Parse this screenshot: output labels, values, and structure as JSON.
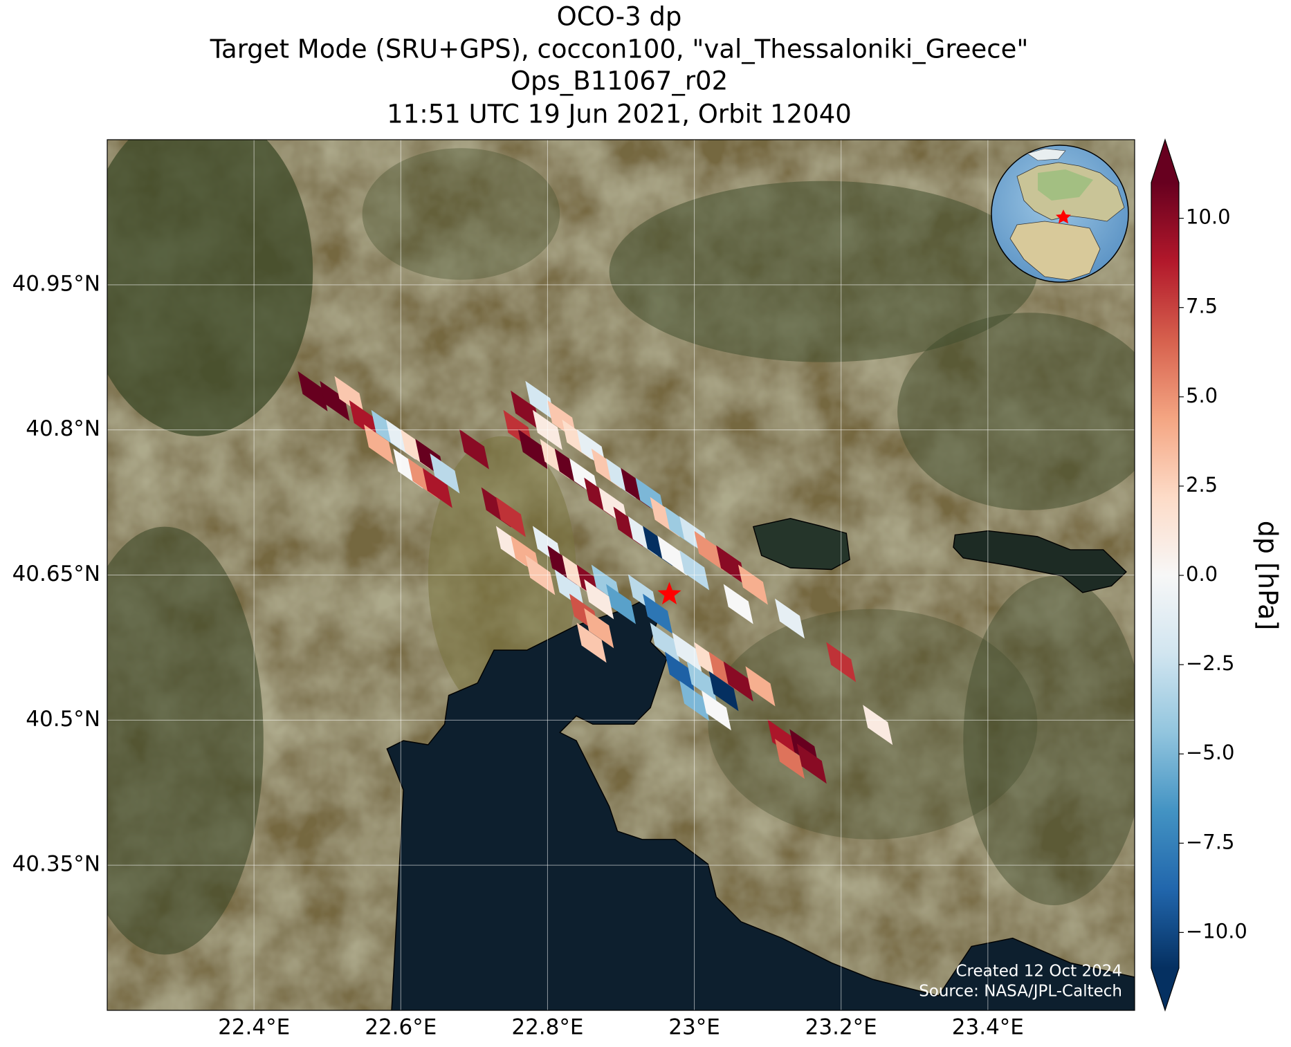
{
  "chart_data": {
    "type": "map",
    "title_lines": [
      "OCO-3 dp",
      "Target Mode (SRU+GPS), coccon100, \"val_Thessaloniki_Greece\"",
      "Ops_B11067_r02",
      "11:51 UTC 19 Jun 2021, Orbit 12040"
    ],
    "xlim": [
      22.2,
      23.6
    ],
    "ylim": [
      40.2,
      41.1
    ],
    "xticks": [
      {
        "value": 22.4,
        "label": "22.4°E"
      },
      {
        "value": 22.6,
        "label": "22.6°E"
      },
      {
        "value": 22.8,
        "label": "22.8°E"
      },
      {
        "value": 23.0,
        "label": "23°E"
      },
      {
        "value": 23.2,
        "label": "23.2°E"
      },
      {
        "value": 23.4,
        "label": "23.4°E"
      }
    ],
    "yticks": [
      {
        "value": 40.35,
        "label": "40.35°N"
      },
      {
        "value": 40.5,
        "label": "40.5°N"
      },
      {
        "value": 40.65,
        "label": "40.65°N"
      },
      {
        "value": 40.8,
        "label": "40.8°N"
      },
      {
        "value": 40.95,
        "label": "40.95°N"
      }
    ],
    "grid": true,
    "colorbar": {
      "label": "dp [hPa]",
      "clim": [
        -11,
        11
      ],
      "colormap": [
        "#053061",
        "#2166ac",
        "#4393c3",
        "#92c5de",
        "#d1e5f0",
        "#f7f7f7",
        "#fddbc7",
        "#f4a582",
        "#d6604d",
        "#b2182b",
        "#67001f"
      ],
      "ticks": [
        {
          "value": -10,
          "label": "−10.0"
        },
        {
          "value": -7.5,
          "label": "−7.5"
        },
        {
          "value": -5,
          "label": "−5.0"
        },
        {
          "value": -2.5,
          "label": "−2.5"
        },
        {
          "value": 0,
          "label": "0.0"
        },
        {
          "value": 2.5,
          "label": "2.5"
        },
        {
          "value": 5,
          "label": "5.0"
        },
        {
          "value": 7.5,
          "label": "7.5"
        },
        {
          "value": 10,
          "label": "10.0"
        }
      ]
    },
    "footprints": {
      "lon": [
        22.48,
        22.51,
        22.53,
        22.55,
        22.58,
        22.6,
        22.57,
        22.62,
        22.64,
        22.61,
        22.63,
        22.65,
        22.66,
        22.7,
        22.73,
        22.75,
        22.77,
        22.79,
        22.76,
        22.8,
        22.82,
        22.78,
        22.81,
        22.84,
        22.86,
        22.83,
        22.85,
        22.88,
        22.9,
        22.87,
        22.89,
        22.92,
        22.94,
        22.91,
        22.93,
        22.96,
        22.98,
        22.95,
        22.97,
        23.0,
        23.02,
        23.05,
        23.0,
        22.75,
        22.77,
        22.8,
        22.82,
        22.79,
        22.84,
        22.86,
        22.83,
        22.88,
        22.9,
        22.87,
        22.93,
        22.95,
        22.85,
        22.87,
        22.86,
        22.96,
        22.99,
        23.02,
        22.98,
        23.01,
        23.04,
        23.06,
        23.09,
        23.04,
        23.0,
        23.03,
        23.06,
        23.08,
        23.13,
        23.2,
        23.25,
        23.12,
        23.15,
        23.13,
        23.16
      ],
      "lat": [
        40.84,
        40.83,
        40.835,
        40.81,
        40.8,
        40.79,
        40.785,
        40.78,
        40.77,
        40.76,
        40.75,
        40.74,
        40.755,
        40.78,
        40.72,
        40.71,
        40.82,
        40.83,
        40.8,
        40.8,
        40.81,
        40.78,
        40.77,
        40.79,
        40.78,
        40.76,
        40.75,
        40.76,
        40.75,
        40.73,
        40.72,
        40.74,
        40.73,
        40.7,
        40.69,
        40.71,
        40.7,
        40.68,
        40.67,
        40.69,
        40.675,
        40.66,
        40.655,
        40.68,
        40.67,
        40.68,
        40.66,
        40.65,
        40.65,
        40.64,
        40.635,
        40.64,
        40.62,
        40.625,
        40.63,
        40.61,
        40.61,
        40.595,
        40.58,
        40.58,
        40.57,
        40.56,
        40.55,
        40.54,
        40.55,
        40.54,
        40.535,
        40.53,
        40.52,
        40.51,
        40.62,
        40.64,
        40.605,
        40.56,
        40.495,
        40.48,
        40.47,
        40.46,
        40.455
      ],
      "values": [
        11,
        11,
        3,
        9,
        -4,
        -1,
        4,
        2,
        11,
        0,
        5,
        9,
        -3,
        10,
        10,
        8,
        10,
        -2,
        8,
        1,
        3,
        11,
        2,
        2,
        -1,
        11,
        0,
        3,
        -2,
        10,
        1,
        11,
        -5,
        10,
        -1,
        3,
        -4,
        -11,
        0,
        -2,
        5,
        10,
        -3,
        1,
        4,
        -1,
        11,
        3,
        2,
        10,
        -2,
        -4,
        -6,
        1,
        -3,
        -8,
        7,
        4,
        3,
        -3,
        -1,
        2,
        -9,
        -4,
        6,
        10,
        4,
        -11,
        -5,
        0,
        0,
        4,
        -1,
        8,
        1,
        9,
        11,
        6,
        10
      ]
    },
    "target": {
      "lon": 22.966,
      "lat": 40.63
    },
    "annotations": [
      "Created 12 Oct 2024",
      "Source: NASA/JPL-Caltech"
    ]
  }
}
